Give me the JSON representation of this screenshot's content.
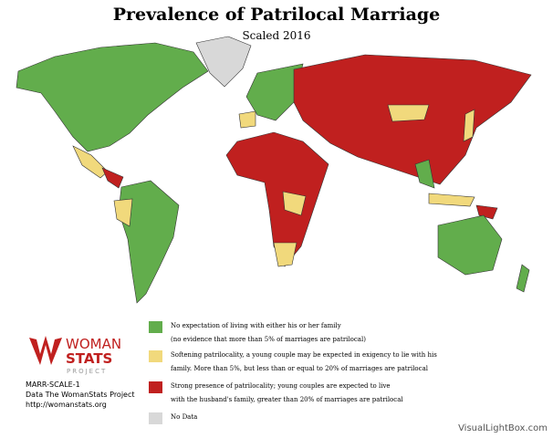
{
  "header": {
    "title": "Prevalence of Patrilocal Marriage",
    "subtitle": "Scaled 2016"
  },
  "logo": {
    "line1": "WOMAN",
    "line2": "STATS",
    "line3": "PROJECT"
  },
  "source": {
    "lines": [
      "MARR-SCALE-1",
      "Data The WomanStats Project",
      "http://womanstats.org"
    ]
  },
  "legend": {
    "items": [
      {
        "lines": [
          "No expectation of living with either his or her family",
          "(no evidence that more than 5% of marriages are patrilocal)"
        ],
        "color": "#62ad4c"
      },
      {
        "lines": [
          "Softening patrilocality, a young couple may be expected in exigency to lie with his",
          "family. More than 5%, but less than or equal to 20% of marriages are patrilocal"
        ],
        "color": "#f1d97c"
      },
      {
        "lines": [
          "Strong presence of patrilocality; young couples are expected to live",
          "with the husband's family, greater than 20% of marriages are patrilocal"
        ],
        "color": "#c0201f"
      },
      {
        "lines": [
          "No Data"
        ],
        "color": "#d8d8d8"
      }
    ]
  },
  "watermark": "VisualLightBox.com"
}
